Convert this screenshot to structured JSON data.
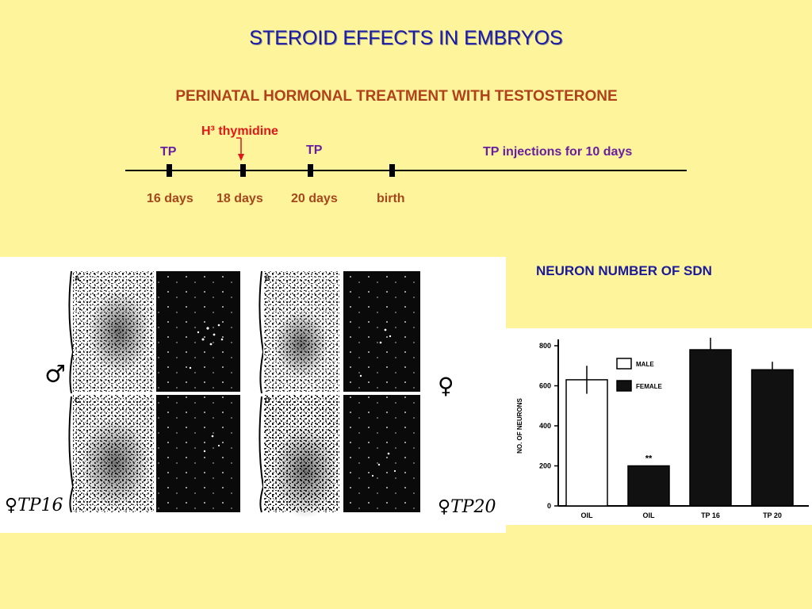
{
  "title": "STEROID EFFECTS IN EMBRYOS",
  "subtitle": "PERINATAL HORMONAL TREATMENT WITH TESTOSTERONE",
  "timeline": {
    "h3_label": "H³ thymidine",
    "tp_first": "TP",
    "tp_second": "TP",
    "tp_injections": "TP injections for 10 days",
    "ticks": [
      "16 days",
      "18 days",
      "20 days",
      "birth"
    ]
  },
  "micrographs": {
    "panel_letters": [
      "A",
      "B",
      "C",
      "D"
    ],
    "annotations": {
      "male_symbol": "♂",
      "female_symbol": "♀",
      "left_bottom": "♀TP16",
      "right_bottom": "♀TP20"
    }
  },
  "neuron_title": "NEURON NUMBER OF SDN",
  "chart_data": {
    "type": "bar",
    "categories": [
      "OIL",
      "OIL",
      "TP 16",
      "TP 20"
    ],
    "values": [
      630,
      200,
      780,
      680
    ],
    "error": [
      70,
      0,
      60,
      40
    ],
    "fills": [
      "white",
      "black",
      "black",
      "black"
    ],
    "ylabel": "NO. OF NEURONS",
    "ylim": [
      0,
      800
    ],
    "yticks": [
      0,
      200,
      400,
      600,
      800
    ],
    "legend": [
      {
        "label": "MALE",
        "fill": "white"
      },
      {
        "label": "FEMALE",
        "fill": "black"
      }
    ],
    "annotation": "**",
    "colors": {
      "bar_dark": "#111111",
      "bar_light": "#ffffff"
    }
  }
}
